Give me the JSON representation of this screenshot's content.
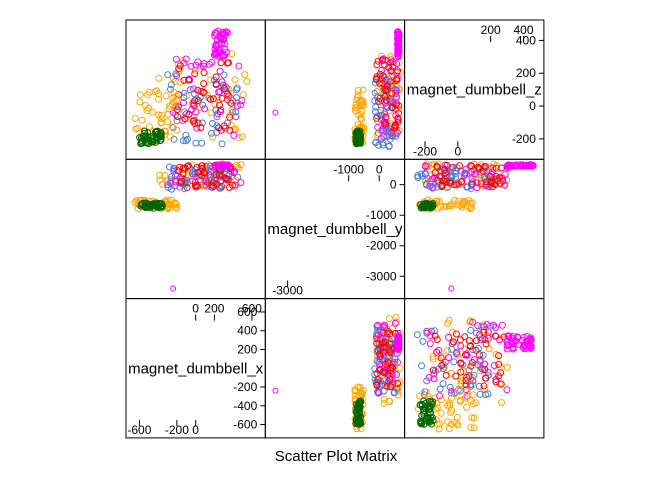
{
  "chart_data": {
    "type": "scatter",
    "title": "Scatter Plot Matrix",
    "layout": "pairs scatter plot matrix (3 x 3); variable names on the diagonal panels",
    "grid": false,
    "colors": [
      "#4a7fd4",
      "#ff00ff",
      "#ff0000",
      "#ffa500",
      "#006400"
    ],
    "variables": [
      {
        "name": "magnet_dumbbell_x",
        "range": [
          -700,
          700
        ],
        "ticks_outer": [
          -600,
          -200,
          0
        ],
        "ticks_inner": [
          0,
          200,
          600
        ],
        "ticks_axis": [
          -600,
          -400,
          -200,
          200,
          400,
          600
        ],
        "ticks_axis_labels": [
          "-600",
          "-400",
          "-200",
          "200",
          "400",
          "600"
        ]
      },
      {
        "name": "magnet_dumbbell_y",
        "range": [
          -3600,
          700
        ],
        "ticks_outer": [
          -3000
        ],
        "ticks_inner": [
          -1000,
          0
        ],
        "ticks_axis": [
          -3000,
          -2000,
          -1000,
          0
        ],
        "ticks_axis_labels": [
          "-3000",
          "-2000",
          "-1000",
          "0"
        ]
      },
      {
        "name": "magnet_dumbbell_z",
        "range": [
          -300,
          500
        ],
        "ticks_outer": [
          -200,
          0
        ],
        "ticks_inner": [
          200,
          400
        ],
        "ticks_axis": [
          -200,
          0,
          200,
          400
        ],
        "ticks_axis_labels": [
          "-200",
          "0",
          "200",
          "400"
        ]
      }
    ],
    "clusters": [
      {
        "c": 3,
        "x": [
          -400,
          550
        ],
        "y": [
          -80,
          700
        ],
        "z": [
          -200,
          320
        ]
      },
      {
        "c": 1,
        "x": [
          -300,
          500
        ],
        "y": [
          -100,
          650
        ],
        "z": [
          -200,
          300
        ]
      },
      {
        "c": 0,
        "x": [
          -300,
          450
        ],
        "y": [
          -150,
          600
        ],
        "z": [
          -250,
          200
        ]
      },
      {
        "c": 2,
        "x": [
          -200,
          400
        ],
        "y": [
          -100,
          650
        ],
        "z": [
          -150,
          280
        ]
      },
      {
        "c": 3,
        "x": [
          -650,
          -200
        ],
        "y": [
          -800,
          -500
        ],
        "z": [
          -250,
          100
        ]
      },
      {
        "c": 4,
        "x": [
          -600,
          -350
        ],
        "y": [
          -770,
          -600
        ],
        "z": [
          -230,
          -150
        ]
      },
      {
        "c": 1,
        "x": [
          200,
          350
        ],
        "y": [
          600,
          650
        ],
        "z": [
          300,
          460
        ]
      }
    ],
    "outliers": [
      {
        "c": 1,
        "x": -240,
        "y": -3400,
        "z": -40
      },
      {
        "c": 0,
        "x": -120,
        "y": -150,
        "z": 80
      }
    ]
  }
}
